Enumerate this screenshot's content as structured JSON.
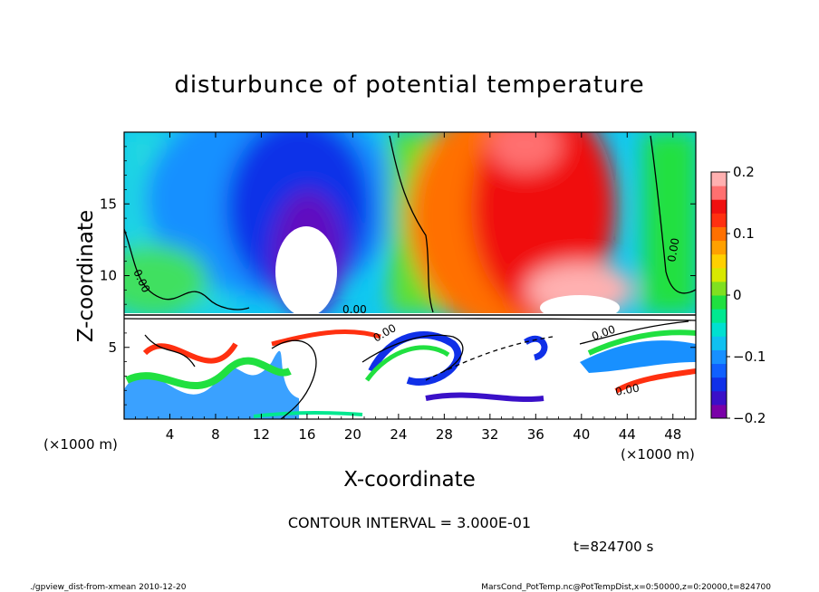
{
  "chart_data": {
    "type": "heatmap",
    "title": "disturbunce of potential temperature",
    "xlabel": "X-coordinate",
    "ylabel": "Z-coordinate",
    "x_unit": "(×1000 m)",
    "z_unit": "(×1000 m)",
    "xlim": [
      0,
      50
    ],
    "ylim": [
      0,
      20
    ],
    "xticks": [
      4,
      8,
      12,
      16,
      20,
      24,
      28,
      32,
      36,
      40,
      44,
      48
    ],
    "yticks": [
      5,
      10,
      15
    ],
    "colorbar": {
      "ticks": [
        0.2,
        0.1,
        0,
        -0.1,
        -0.2
      ],
      "tick_labels": [
        "0.2",
        "0.1",
        "0",
        "−0.1",
        "−0.2"
      ],
      "range": [
        -0.2,
        0.2
      ],
      "colors": [
        "#7a00a8",
        "#3a10c8",
        "#1030e8",
        "#1060ff",
        "#1890ff",
        "#10c0f0",
        "#00e0d0",
        "#00e890",
        "#20e040",
        "#80e020",
        "#d8e800",
        "#ffd000",
        "#ffa000",
        "#ff7000",
        "#ff3010",
        "#f01010",
        "#ff7070",
        "#ffb0b0"
      ]
    },
    "contour_labels": [
      "0.00",
      "0.00",
      "0.00",
      "0.00",
      "0.00",
      "0.00"
    ],
    "field_blobs": [
      {
        "x": 15.5,
        "z": 13.0,
        "v": -0.2
      },
      {
        "x": 15.0,
        "z": 16.0,
        "v": -0.14
      },
      {
        "x": 6.0,
        "z": 17.0,
        "v": -0.09
      },
      {
        "x": 3.0,
        "z": 10.5,
        "v": 0.02
      },
      {
        "x": 33.0,
        "z": 14.0,
        "v": 0.12
      },
      {
        "x": 37.5,
        "z": 18.5,
        "v": 0.18
      },
      {
        "x": 39.0,
        "z": 9.0,
        "v": 0.2
      },
      {
        "x": 47.0,
        "z": 10.0,
        "v": 0.03
      }
    ]
  },
  "annotations": {
    "contour_interval": "CONTOUR INTERVAL = 3.000E-01",
    "time": "t=824700 s",
    "footer_left": "./gpview_dist-from-xmean  2010-12-20",
    "footer_right": "MarsCond_PotTemp.nc@PotTempDist,x=0:50000,z=0:20000,t=824700"
  }
}
